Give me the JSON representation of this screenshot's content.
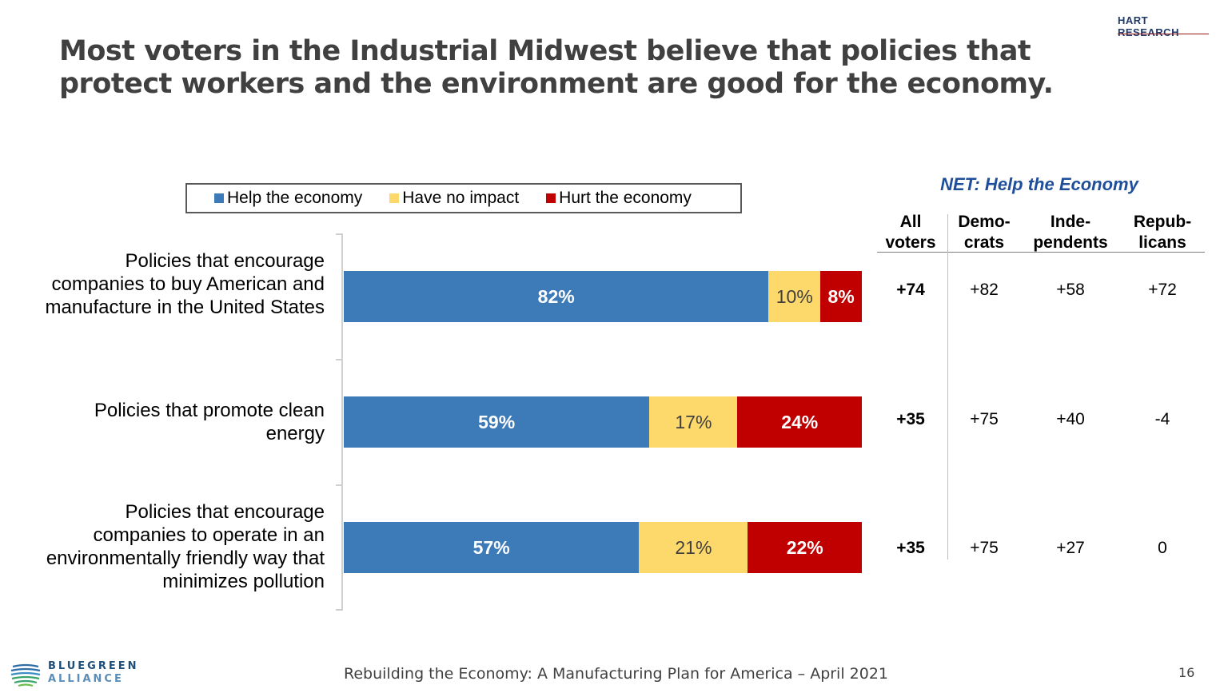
{
  "title": "Most voters in the Industrial Midwest believe that policies that protect workers and the environment are good for the economy.",
  "logos": {
    "hart": "HART RESEARCH",
    "bluegreen_line1": "BLUEGREEN",
    "bluegreen_line2": "ALLIANCE"
  },
  "footer": {
    "text": "Rebuilding the Economy: A Manufacturing Plan for America – April 2021",
    "page": "16"
  },
  "colors": {
    "help": "#3d7ab8",
    "none": "#fdd86a",
    "hurt": "#c00000"
  },
  "chart_data": {
    "type": "bar",
    "orientation": "horizontal",
    "stacked": true,
    "legend_position": "top",
    "categories": [
      "Policies that encourage companies to buy American and manufacture in the United States",
      "Policies that promote clean energy",
      "Policies that encourage companies to operate in an environmentally friendly way that minimizes pollution"
    ],
    "series": [
      {
        "name": "Help the economy",
        "values": [
          82,
          59,
          57
        ],
        "labels": [
          "82%",
          "59%",
          "57%"
        ]
      },
      {
        "name": "Have no impact",
        "values": [
          10,
          17,
          21
        ],
        "labels": [
          "10%",
          "17%",
          "21%"
        ]
      },
      {
        "name": "Hurt the economy",
        "values": [
          8,
          24,
          22
        ],
        "labels": [
          "8%",
          "24%",
          "22%"
        ]
      }
    ],
    "xlim": [
      0,
      100
    ]
  },
  "net_table": {
    "title": "NET:  Help the Economy",
    "columns": [
      {
        "line1": "All",
        "line2": "voters"
      },
      {
        "line1": "Demo-",
        "line2": "crats"
      },
      {
        "line1": "Inde-",
        "line2": "pendents"
      },
      {
        "line1": "Repub-",
        "line2": "licans"
      }
    ],
    "rows": [
      [
        "+74",
        "+82",
        "+58",
        "+72"
      ],
      [
        "+35",
        "+75",
        "+40",
        "-4"
      ],
      [
        "+35",
        "+75",
        "+27",
        "0"
      ]
    ]
  }
}
